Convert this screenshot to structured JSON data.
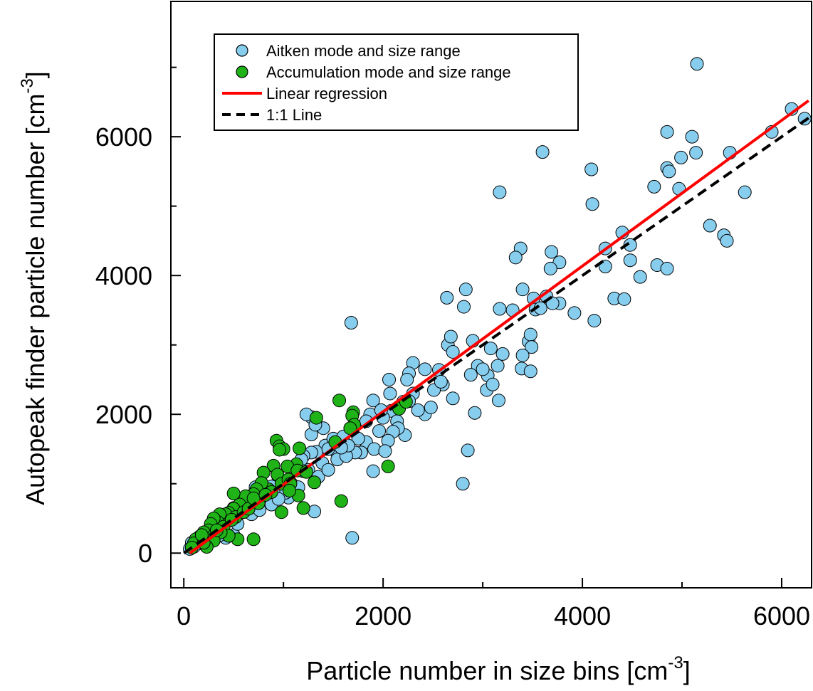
{
  "chart_data": {
    "type": "scatter",
    "title": "",
    "xlabel": "Particle number in size bins [cm",
    "xlabel_sup": "-3",
    "xlabel_suffix": "]",
    "ylabel": "Autopeak finder particle number [cm",
    "ylabel_sup": "-3",
    "ylabel_suffix": "]",
    "xlim": [
      -130,
      6300
    ],
    "ylim": [
      -500,
      7950
    ],
    "x_ticks": [
      0,
      2000,
      4000,
      6000
    ],
    "y_ticks": [
      0,
      2000,
      4000,
      6000
    ],
    "x_minor_ticks": [
      1000,
      3000,
      5000
    ],
    "y_minor_ticks": [
      1000,
      3000,
      5000,
      7000
    ],
    "grid": false,
    "legend_position": "top-left",
    "colors": {
      "aitken": "#87cdee",
      "accumulation": "#1fb317",
      "regression": "#ff0000",
      "one_to_one": "#000000"
    },
    "series": [
      {
        "name": "Aitken mode and size range",
        "kind": "points",
        "points": [
          [
            5150,
            7050
          ],
          [
            6100,
            6400
          ],
          [
            6230,
            6260
          ],
          [
            5900,
            6070
          ],
          [
            4850,
            6070
          ],
          [
            5100,
            6000
          ],
          [
            4990,
            5700
          ],
          [
            4850,
            5550
          ],
          [
            5140,
            5770
          ],
          [
            3600,
            5780
          ],
          [
            4870,
            5500
          ],
          [
            4970,
            5250
          ],
          [
            3170,
            5200
          ],
          [
            5630,
            5200
          ],
          [
            4090,
            5530
          ],
          [
            4720,
            5280
          ],
          [
            4100,
            5030
          ],
          [
            5480,
            5770
          ],
          [
            5280,
            4720
          ],
          [
            5420,
            4580
          ],
          [
            5450,
            4500
          ],
          [
            4400,
            4620
          ],
          [
            4480,
            4440
          ],
          [
            4750,
            4150
          ],
          [
            4850,
            4100
          ],
          [
            4480,
            4220
          ],
          [
            4580,
            3980
          ],
          [
            4230,
            4390
          ],
          [
            4230,
            4130
          ],
          [
            4320,
            3670
          ],
          [
            4420,
            3660
          ],
          [
            4120,
            3350
          ],
          [
            3920,
            3460
          ],
          [
            3770,
            4190
          ],
          [
            3690,
            4340
          ],
          [
            3680,
            4100
          ],
          [
            3770,
            3600
          ],
          [
            3640,
            3700
          ],
          [
            3510,
            3670
          ],
          [
            3530,
            3510
          ],
          [
            3380,
            4390
          ],
          [
            3330,
            4260
          ],
          [
            3400,
            3800
          ],
          [
            3300,
            3500
          ],
          [
            3170,
            3520
          ],
          [
            3460,
            3050
          ],
          [
            3480,
            3150
          ],
          [
            3490,
            2970
          ],
          [
            3400,
            2850
          ],
          [
            3390,
            2660
          ],
          [
            3480,
            2620
          ],
          [
            3160,
            2200
          ],
          [
            2830,
            3800
          ],
          [
            2810,
            3550
          ],
          [
            2640,
            3680
          ],
          [
            2650,
            3000
          ],
          [
            2700,
            2900
          ],
          [
            2680,
            3120
          ],
          [
            2900,
            3060
          ],
          [
            2950,
            2700
          ],
          [
            2880,
            2570
          ],
          [
            2920,
            2020
          ],
          [
            3050,
            2560
          ],
          [
            3040,
            2350
          ],
          [
            3100,
            2430
          ],
          [
            3080,
            2950
          ],
          [
            3200,
            2870
          ],
          [
            2850,
            1480
          ],
          [
            2800,
            1000
          ],
          [
            2600,
            2430
          ],
          [
            2560,
            2640
          ],
          [
            2420,
            2650
          ],
          [
            2300,
            2740
          ],
          [
            2260,
            2590
          ],
          [
            2240,
            2500
          ],
          [
            2420,
            2000
          ],
          [
            2480,
            2100
          ],
          [
            2350,
            2060
          ],
          [
            2300,
            2300
          ],
          [
            2200,
            2180
          ],
          [
            2060,
            2500
          ],
          [
            2070,
            2300
          ],
          [
            2080,
            2050
          ],
          [
            2140,
            1900
          ],
          [
            2000,
            1950
          ],
          [
            2220,
            1700
          ],
          [
            2150,
            1800
          ],
          [
            2100,
            1750
          ],
          [
            1900,
            2200
          ],
          [
            1870,
            2000
          ],
          [
            1960,
            1760
          ],
          [
            1830,
            1900
          ],
          [
            1830,
            1600
          ],
          [
            1910,
            1500
          ],
          [
            1780,
            1450
          ],
          [
            1900,
            1180
          ],
          [
            2050,
            1620
          ],
          [
            2020,
            1470
          ],
          [
            1720,
            1450
          ],
          [
            1680,
            3320
          ],
          [
            1690,
            220
          ],
          [
            1400,
            1800
          ],
          [
            1420,
            1550
          ],
          [
            1500,
            1650
          ],
          [
            1530,
            1460
          ],
          [
            1540,
            1350
          ],
          [
            1630,
            1400
          ],
          [
            1390,
            1300
          ],
          [
            1280,
            1960
          ],
          [
            1280,
            1710
          ],
          [
            1320,
            1850
          ],
          [
            1230,
            2000
          ],
          [
            1330,
            1460
          ],
          [
            1280,
            1450
          ],
          [
            1200,
            1400
          ],
          [
            1250,
            1200
          ],
          [
            1180,
            1350
          ],
          [
            1350,
            1100
          ],
          [
            1310,
            600
          ],
          [
            1200,
            1180
          ],
          [
            1100,
            1200
          ],
          [
            1080,
            1000
          ],
          [
            1150,
            950
          ],
          [
            1050,
            800
          ],
          [
            950,
            1050
          ],
          [
            1000,
            900
          ],
          [
            1020,
            870
          ],
          [
            900,
            880
          ],
          [
            880,
            960
          ],
          [
            820,
            900
          ],
          [
            830,
            760
          ],
          [
            780,
            810
          ],
          [
            720,
            950
          ],
          [
            700,
            700
          ],
          [
            650,
            800
          ],
          [
            600,
            680
          ],
          [
            620,
            620
          ],
          [
            570,
            580
          ],
          [
            500,
            650
          ],
          [
            470,
            480
          ],
          [
            430,
            510
          ],
          [
            380,
            470
          ],
          [
            350,
            400
          ],
          [
            330,
            330
          ],
          [
            310,
            280
          ],
          [
            280,
            350
          ],
          [
            250,
            320
          ],
          [
            210,
            250
          ],
          [
            200,
            220
          ],
          [
            180,
            170
          ],
          [
            150,
            140
          ],
          [
            130,
            180
          ],
          [
            120,
            120
          ],
          [
            100,
            90
          ],
          [
            80,
            150
          ],
          [
            60,
            60
          ],
          [
            300,
            180
          ],
          [
            420,
            220
          ],
          [
            500,
            260
          ],
          [
            360,
            260
          ],
          [
            540,
            420
          ],
          [
            680,
            560
          ],
          [
            760,
            620
          ],
          [
            880,
            700
          ],
          [
            950,
            780
          ],
          [
            1450,
            1500
          ],
          [
            1600,
            1680
          ],
          [
            1450,
            1200
          ],
          [
            1750,
            1650
          ],
          [
            1650,
            1550
          ],
          [
            1580,
            1520
          ],
          [
            1980,
            2060
          ],
          [
            2260,
            2190
          ],
          [
            2510,
            2350
          ],
          [
            2580,
            2470
          ],
          [
            2700,
            2230
          ],
          [
            3000,
            2650
          ],
          [
            3150,
            2700
          ],
          [
            3580,
            3530
          ],
          [
            3700,
            3600
          ]
        ]
      },
      {
        "name": "Accumulation mode and size range",
        "kind": "points",
        "points": [
          [
            1560,
            2200
          ],
          [
            1700,
            2030
          ],
          [
            1690,
            1980
          ],
          [
            1710,
            1850
          ],
          [
            1670,
            1800
          ],
          [
            1330,
            1950
          ],
          [
            1520,
            1600
          ],
          [
            930,
            1620
          ],
          [
            960,
            1540
          ],
          [
            1000,
            1500
          ],
          [
            1160,
            1510
          ],
          [
            1130,
            1280
          ],
          [
            1040,
            1250
          ],
          [
            900,
            1260
          ],
          [
            800,
            1160
          ],
          [
            940,
            1130
          ],
          [
            980,
            1000
          ],
          [
            850,
            920
          ],
          [
            780,
            1010
          ],
          [
            730,
            920
          ],
          [
            700,
            850
          ],
          [
            620,
            820
          ],
          [
            560,
            700
          ],
          [
            500,
            860
          ],
          [
            500,
            640
          ],
          [
            450,
            580
          ],
          [
            420,
            560
          ],
          [
            360,
            560
          ],
          [
            340,
            450
          ],
          [
            300,
            500
          ],
          [
            270,
            420
          ],
          [
            250,
            330
          ],
          [
            200,
            300
          ],
          [
            160,
            240
          ],
          [
            120,
            200
          ],
          [
            100,
            140
          ],
          [
            80,
            80
          ],
          [
            300,
            250
          ],
          [
            400,
            380
          ],
          [
            520,
            520
          ],
          [
            600,
            590
          ],
          [
            650,
            640
          ],
          [
            750,
            720
          ],
          [
            880,
            880
          ],
          [
            1050,
            1060
          ],
          [
            1140,
            1190
          ],
          [
            1310,
            1020
          ],
          [
            1150,
            830
          ],
          [
            1200,
            650
          ],
          [
            1580,
            750
          ],
          [
            2050,
            1250
          ],
          [
            2160,
            2080
          ],
          [
            2230,
            2180
          ],
          [
            960,
            1490
          ],
          [
            700,
            200
          ],
          [
            980,
            590
          ],
          [
            540,
            200
          ],
          [
            450,
            250
          ],
          [
            370,
            300
          ],
          [
            300,
            180
          ],
          [
            230,
            90
          ],
          [
            200,
            150
          ],
          [
            180,
            260
          ],
          [
            330,
            330
          ],
          [
            480,
            480
          ],
          [
            700,
            790
          ],
          [
            820,
            840
          ],
          [
            1070,
            1000
          ],
          [
            1230,
            1170
          ],
          [
            1060,
            900
          ]
        ]
      },
      {
        "name": "Linear regression",
        "kind": "line",
        "points": [
          [
            60,
            0
          ],
          [
            6270,
            6520
          ]
        ]
      },
      {
        "name": "1:1 Line",
        "kind": "line",
        "points": [
          [
            0,
            0
          ],
          [
            6270,
            6270
          ]
        ]
      }
    ]
  }
}
